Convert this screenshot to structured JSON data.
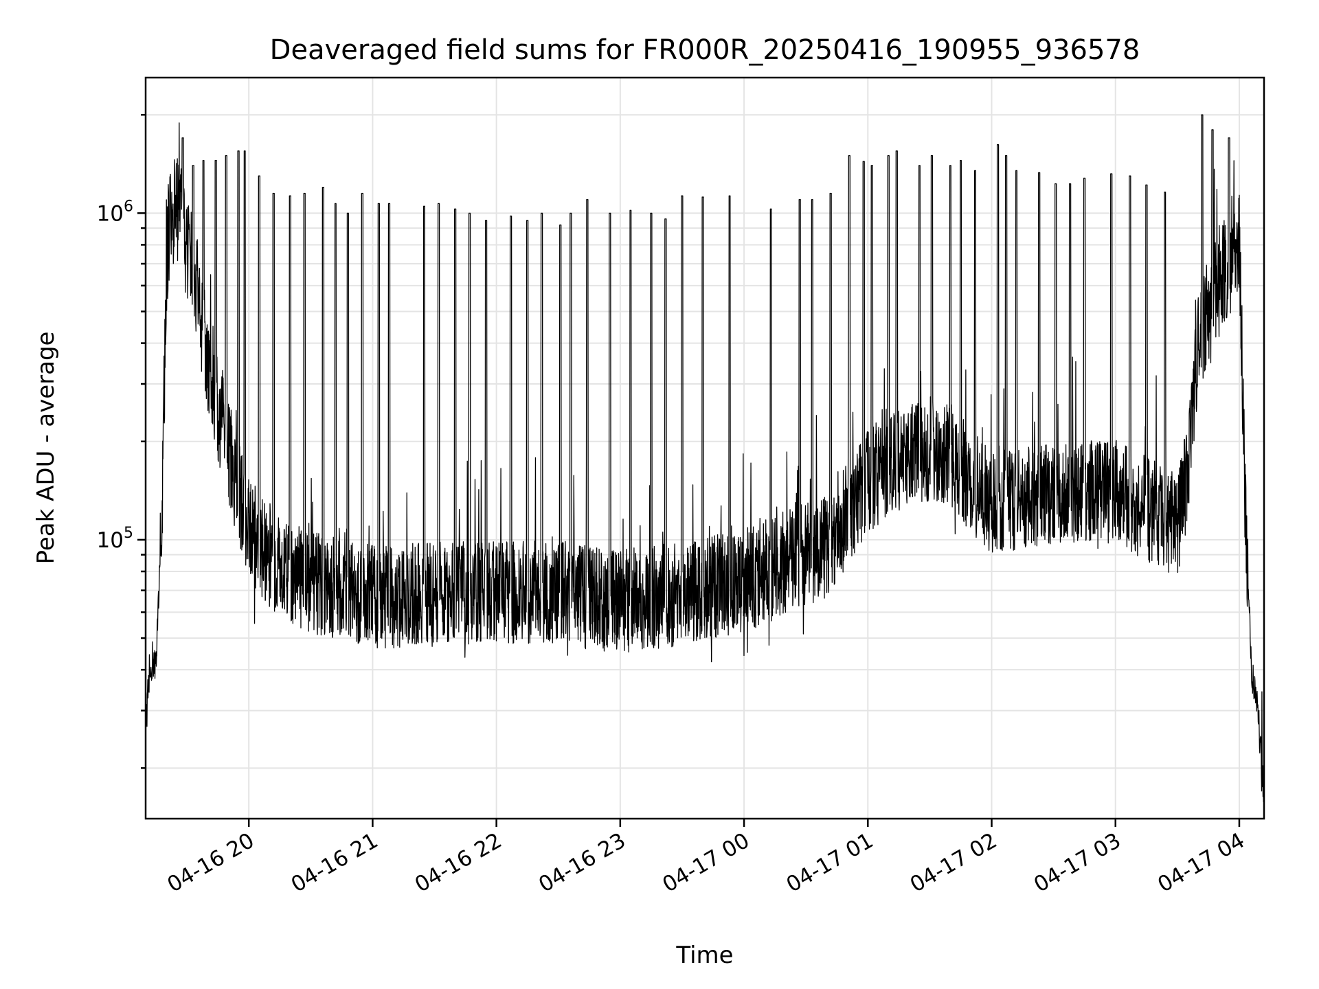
{
  "chart_data": {
    "type": "line",
    "title": "Deaveraged field sums for FR000R_20250416_190955_936578",
    "xlabel": "Time",
    "ylabel": "Peak ADU - average",
    "yscale": "log",
    "ylim": [
      14000,
      2600000
    ],
    "xlim": [
      "2025-04-16 19:10",
      "2025-04-17 04:12"
    ],
    "x_ticks": [
      {
        "t": "2025-04-16 20:00",
        "label": "04-16 20"
      },
      {
        "t": "2025-04-16 21:00",
        "label": "04-16 21"
      },
      {
        "t": "2025-04-16 22:00",
        "label": "04-16 22"
      },
      {
        "t": "2025-04-16 23:00",
        "label": "04-16 23"
      },
      {
        "t": "2025-04-17 00:00",
        "label": "04-17 00"
      },
      {
        "t": "2025-04-17 01:00",
        "label": "04-17 01"
      },
      {
        "t": "2025-04-17 02:00",
        "label": "04-17 02"
      },
      {
        "t": "2025-04-17 03:00",
        "label": "04-17 03"
      },
      {
        "t": "2025-04-17 04:00",
        "label": "04-17 04"
      }
    ],
    "y_ticks": [
      {
        "value": 100000,
        "base": "10",
        "exp": "5"
      },
      {
        "value": 1000000,
        "base": "10",
        "exp": "6"
      }
    ],
    "grid": true,
    "line_color": "#000000",
    "series": [
      {
        "baseline": {
          "x": [
            "2025-04-16 19:10",
            "2025-04-16 19:12",
            "2025-04-16 19:15",
            "2025-04-16 19:18",
            "2025-04-16 19:20",
            "2025-04-16 19:22",
            "2025-04-16 19:25",
            "2025-04-16 19:28",
            "2025-04-16 19:30",
            "2025-04-16 19:35",
            "2025-04-16 19:40",
            "2025-04-16 19:45",
            "2025-04-16 19:50",
            "2025-04-16 19:55",
            "2025-04-16 20:00",
            "2025-04-16 20:10",
            "2025-04-16 20:20",
            "2025-04-16 20:30",
            "2025-04-16 20:45",
            "2025-04-16 21:00",
            "2025-04-16 21:30",
            "2025-04-16 22:00",
            "2025-04-16 22:30",
            "2025-04-16 23:00",
            "2025-04-16 23:30",
            "2025-04-17 00:00",
            "2025-04-17 00:20",
            "2025-04-17 00:40",
            "2025-04-17 00:50",
            "2025-04-17 01:00",
            "2025-04-17 01:10",
            "2025-04-17 01:20",
            "2025-04-17 01:30",
            "2025-04-17 01:40",
            "2025-04-17 02:00",
            "2025-04-17 02:30",
            "2025-04-17 03:00",
            "2025-04-17 03:20",
            "2025-04-17 03:30",
            "2025-04-17 03:35",
            "2025-04-17 03:40",
            "2025-04-17 03:45",
            "2025-04-17 03:50",
            "2025-04-17 03:55",
            "2025-04-17 04:00",
            "2025-04-17 04:03",
            "2025-04-17 04:06",
            "2025-04-17 04:09",
            "2025-04-17 04:12"
          ],
          "y": [
            28000,
            40000,
            42000,
            120000,
            700000,
            950000,
            1050000,
            950000,
            800000,
            600000,
            330000,
            250000,
            190000,
            140000,
            110000,
            88000,
            80000,
            75000,
            70000,
            67000,
            68000,
            70000,
            68000,
            65000,
            68000,
            75000,
            85000,
            95000,
            120000,
            150000,
            170000,
            180000,
            190000,
            180000,
            130000,
            140000,
            140000,
            120000,
            110000,
            160000,
            400000,
            500000,
            600000,
            700000,
            800000,
            120000,
            40000,
            30000,
            16000
          ]
        },
        "spikes": {
          "x": [
            "2025-04-16 19:28",
            "2025-04-16 19:33",
            "2025-04-16 19:38",
            "2025-04-16 19:44",
            "2025-04-16 19:49",
            "2025-04-16 19:55",
            "2025-04-16 19:58",
            "2025-04-16 20:05",
            "2025-04-16 20:12",
            "2025-04-16 20:20",
            "2025-04-16 20:27",
            "2025-04-16 20:36",
            "2025-04-16 20:42",
            "2025-04-16 20:48",
            "2025-04-16 20:55",
            "2025-04-16 21:03",
            "2025-04-16 21:08",
            "2025-04-16 21:25",
            "2025-04-16 21:32",
            "2025-04-16 21:40",
            "2025-04-16 21:47",
            "2025-04-16 21:55",
            "2025-04-16 22:07",
            "2025-04-16 22:15",
            "2025-04-16 22:22",
            "2025-04-16 22:31",
            "2025-04-16 22:36",
            "2025-04-16 22:44",
            "2025-04-16 22:55",
            "2025-04-16 23:05",
            "2025-04-16 23:15",
            "2025-04-16 23:22",
            "2025-04-16 23:30",
            "2025-04-16 23:40",
            "2025-04-16 23:53",
            "2025-04-17 00:13",
            "2025-04-17 00:27",
            "2025-04-17 00:33",
            "2025-04-17 00:42",
            "2025-04-17 00:51",
            "2025-04-17 00:58",
            "2025-04-17 01:02",
            "2025-04-17 01:10",
            "2025-04-17 01:14",
            "2025-04-17 01:25",
            "2025-04-17 01:31",
            "2025-04-17 01:40",
            "2025-04-17 01:45",
            "2025-04-17 01:52",
            "2025-04-17 02:03",
            "2025-04-17 02:07",
            "2025-04-17 02:12",
            "2025-04-17 02:23",
            "2025-04-17 02:31",
            "2025-04-17 02:38",
            "2025-04-17 02:45",
            "2025-04-17 02:58",
            "2025-04-17 03:07",
            "2025-04-17 03:15",
            "2025-04-17 03:24",
            "2025-04-17 03:42",
            "2025-04-17 03:47",
            "2025-04-17 03:55"
          ],
          "y": [
            1700000,
            1400000,
            1450000,
            1450000,
            1500000,
            1550000,
            1550000,
            1300000,
            1150000,
            1130000,
            1150000,
            1200000,
            1070000,
            1000000,
            1150000,
            1070000,
            1070000,
            1050000,
            1070000,
            1030000,
            1000000,
            950000,
            980000,
            950000,
            1000000,
            920000,
            1000000,
            1100000,
            1000000,
            1020000,
            1000000,
            960000,
            1130000,
            1120000,
            1130000,
            1030000,
            1100000,
            1100000,
            1150000,
            1500000,
            1440000,
            1400000,
            1500000,
            1550000,
            1400000,
            1500000,
            1400000,
            1450000,
            1350000,
            1620000,
            1500000,
            1350000,
            1330000,
            1230000,
            1230000,
            1280000,
            1320000,
            1300000,
            1220000,
            1160000,
            2000000,
            1800000,
            1700000
          ]
        }
      }
    ]
  }
}
